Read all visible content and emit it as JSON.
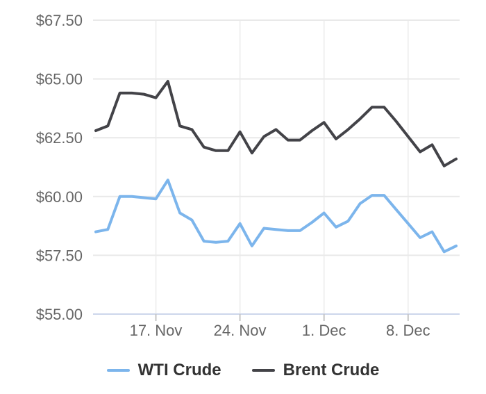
{
  "colors": {
    "background": "#ffffff",
    "axis_line": "#ccd6eb",
    "tick_mark": "#c6c6c6",
    "grid_horizontal": "#e9e9e9",
    "grid_vertical": "#f0f0f0",
    "axis_label_text": "#666666",
    "legend_text": "#333333",
    "wti_line": "#7cb5ec",
    "brent_line": "#434348"
  },
  "legend": {
    "items": [
      {
        "label": "WTI Crude",
        "color": "#7cb5ec"
      },
      {
        "label": "Brent Crude",
        "color": "#434348"
      }
    ]
  },
  "chart_data": {
    "type": "line",
    "title": "",
    "xlabel": "",
    "ylabel": "",
    "grid": true,
    "legend_position": "bottom",
    "ylim": [
      55.0,
      67.5
    ],
    "y_tick_values": [
      67.5,
      65.0,
      62.5,
      60.0,
      57.5,
      55.0
    ],
    "y_tick_labels": [
      "$67.50",
      "$65.00",
      "$62.50",
      "$60.00",
      "$57.50",
      "$55.00"
    ],
    "x": [
      "12. Nov",
      "13. Nov",
      "14. Nov",
      "15. Nov",
      "16. Nov",
      "17. Nov",
      "18. Nov",
      "19. Nov",
      "20. Nov",
      "21. Nov",
      "22. Nov",
      "23. Nov",
      "24. Nov",
      "25. Nov",
      "26. Nov",
      "27. Nov",
      "28. Nov",
      "29. Nov",
      "30. Nov",
      "1. Dec",
      "2. Dec",
      "3. Dec",
      "4. Dec",
      "5. Dec",
      "6. Dec",
      "7. Dec",
      "8. Dec",
      "9. Dec",
      "10. Dec",
      "11. Dec",
      "12. Dec"
    ],
    "x_tick_indices": [
      5,
      12,
      19,
      26
    ],
    "x_tick_labels": [
      "17. Nov",
      "24. Nov",
      "1. Dec",
      "8. Dec"
    ],
    "series": [
      {
        "name": "WTI Crude",
        "color": "#7cb5ec",
        "values": [
          58.5,
          58.6,
          60.0,
          60.0,
          59.95,
          59.9,
          60.7,
          59.3,
          59.0,
          58.1,
          58.05,
          58.1,
          58.85,
          57.9,
          58.65,
          58.6,
          58.55,
          58.55,
          58.9,
          59.3,
          58.7,
          58.95,
          59.7,
          60.05,
          60.05,
          59.45,
          58.85,
          58.25,
          58.5,
          57.65,
          57.9
        ]
      },
      {
        "name": "Brent Crude",
        "color": "#434348",
        "values": [
          62.8,
          63.0,
          64.4,
          64.4,
          64.35,
          64.2,
          64.9,
          63.0,
          62.85,
          62.1,
          61.95,
          61.95,
          62.75,
          61.85,
          62.55,
          62.85,
          62.4,
          62.4,
          62.8,
          63.15,
          62.45,
          62.85,
          63.3,
          63.8,
          63.8,
          63.2,
          62.55,
          61.9,
          62.2,
          61.3,
          61.6
        ]
      }
    ]
  }
}
